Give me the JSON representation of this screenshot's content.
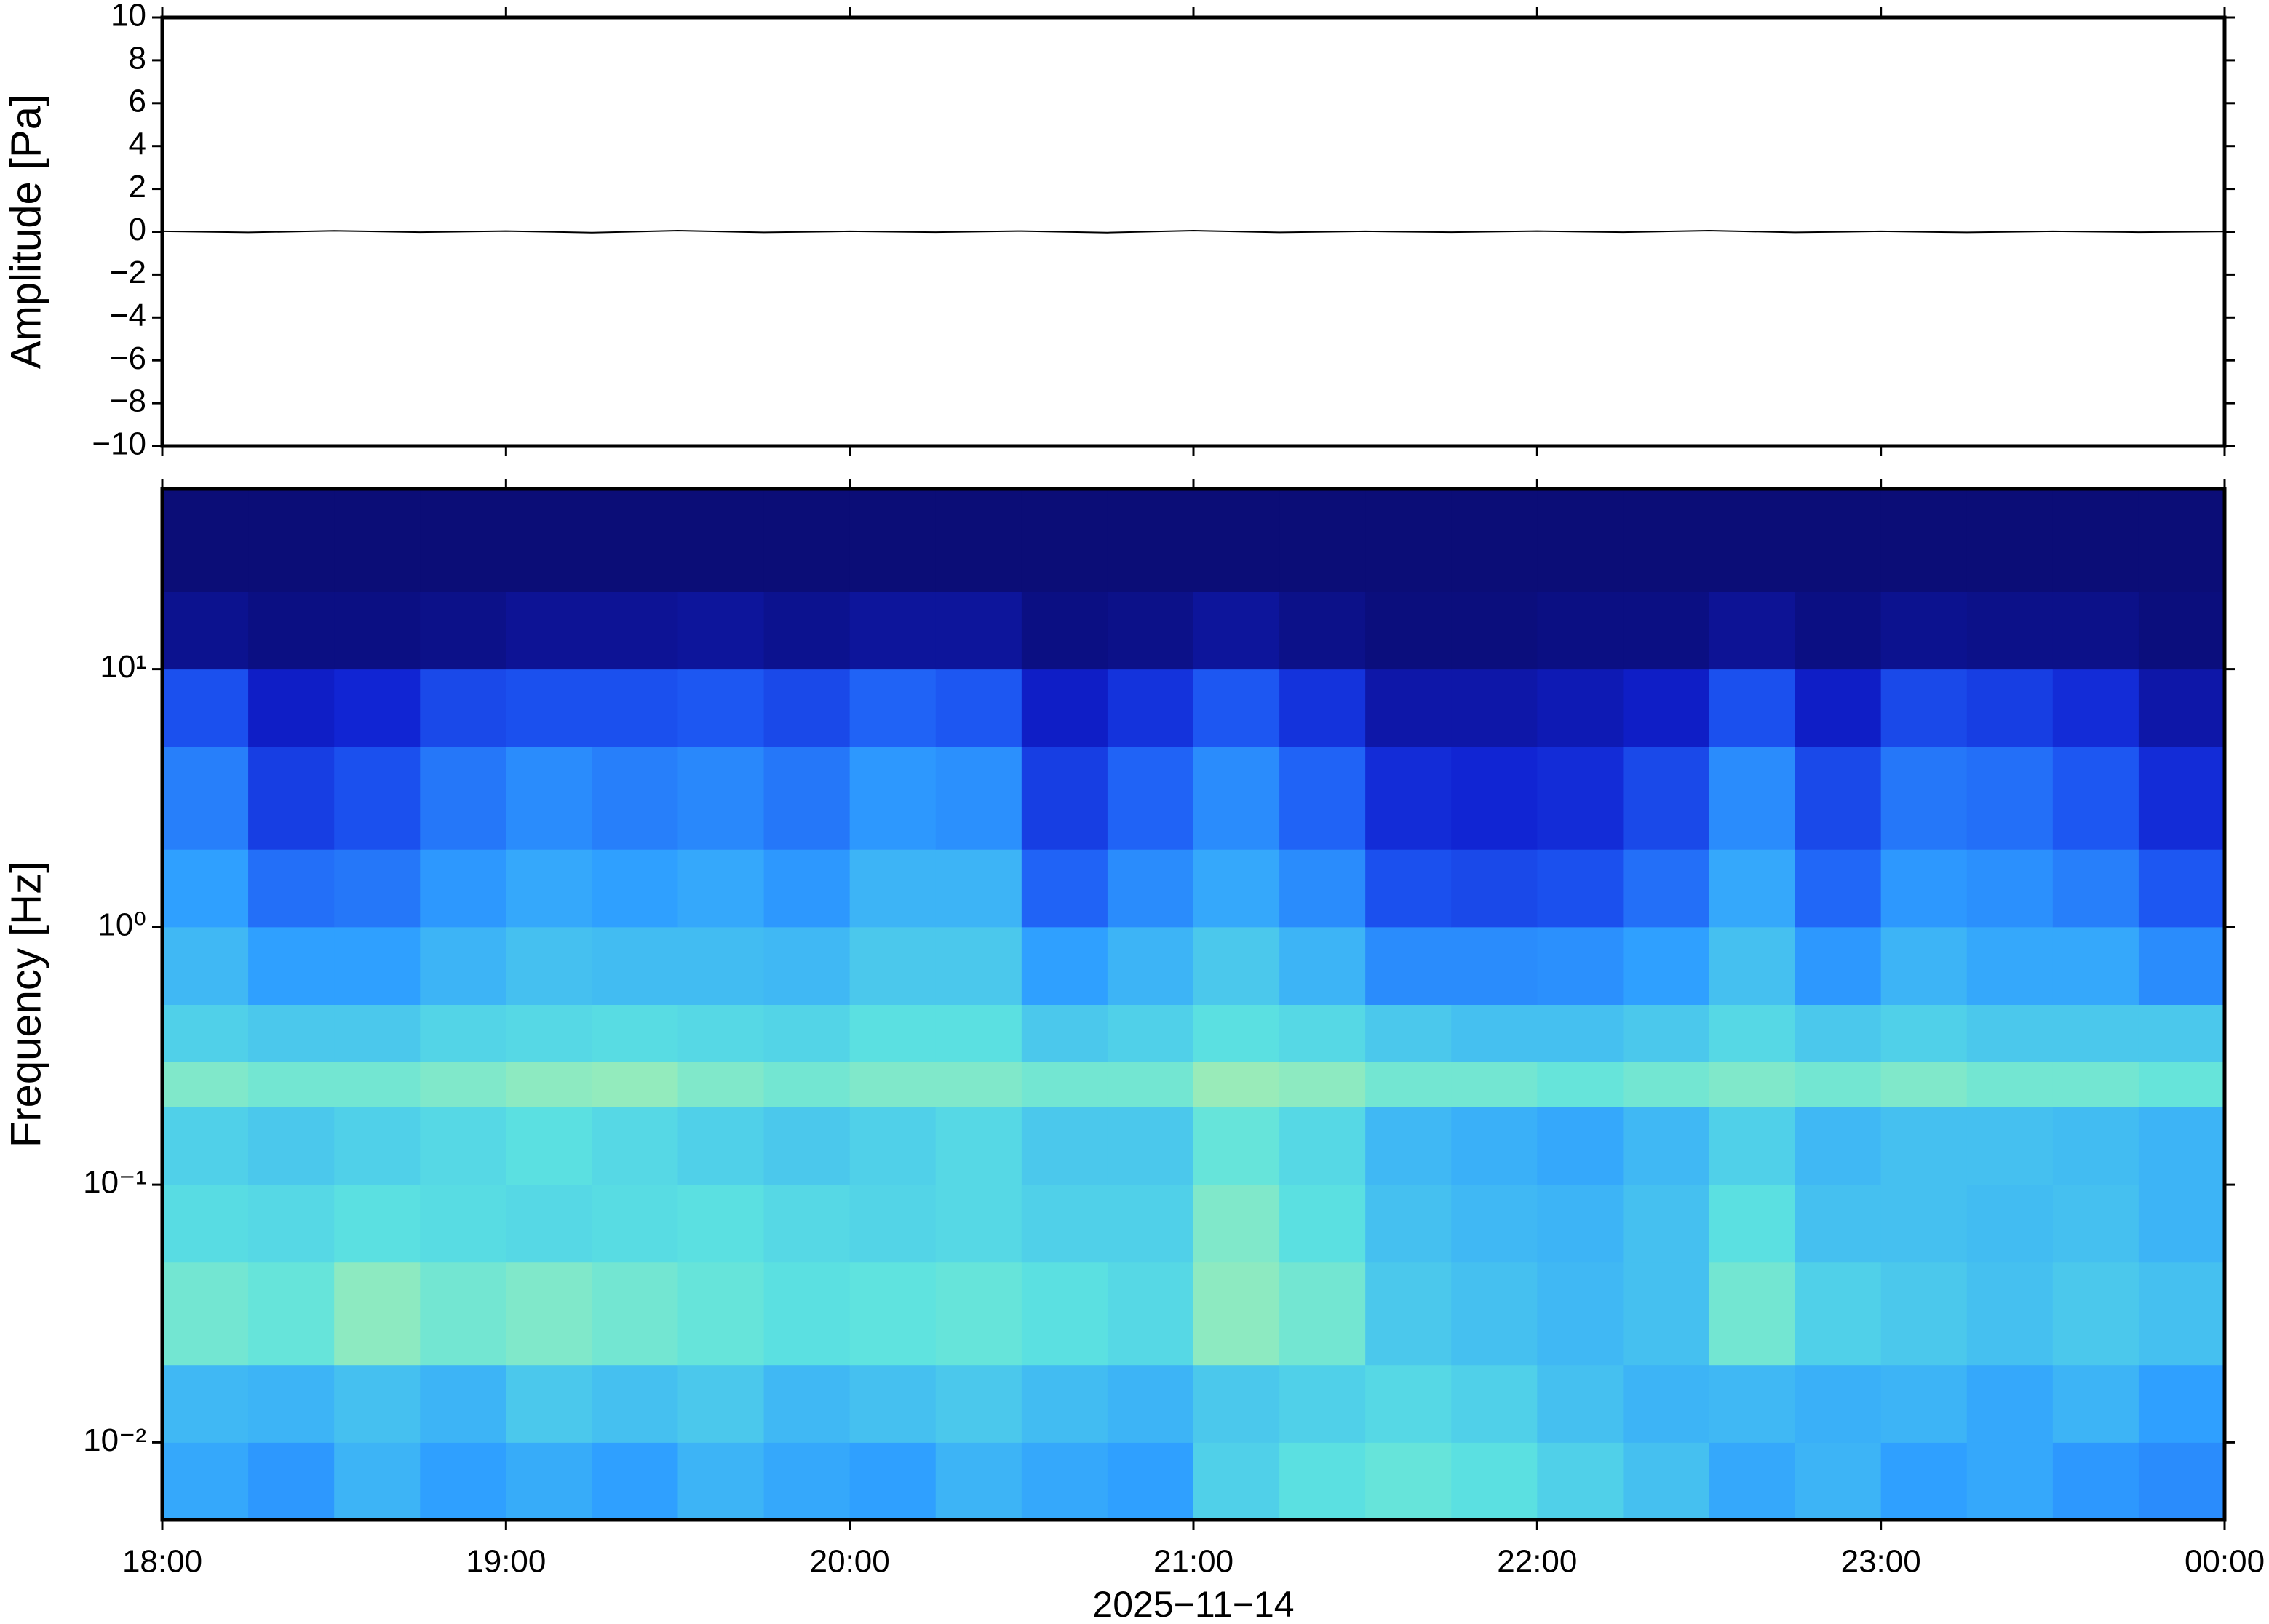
{
  "chart_data": [
    {
      "type": "line",
      "ylabel": "Amplitude [Pa]",
      "x": [
        18,
        18.25,
        18.5,
        18.75,
        19,
        19.25,
        19.5,
        19.75,
        20,
        20.25,
        20.5,
        20.75,
        21,
        21.25,
        21.5,
        21.75,
        22,
        22.25,
        22.5,
        22.75,
        23,
        23.25,
        23.5,
        23.75,
        24
      ],
      "series": [
        {
          "color": "#000000",
          "values": [
            0.02,
            -0.03,
            0.04,
            -0.02,
            0.03,
            -0.04,
            0.05,
            -0.03,
            0.02,
            -0.02,
            0.03,
            -0.04,
            0.05,
            -0.03,
            0.02,
            -0.02,
            0.03,
            -0.02,
            0.05,
            -0.03,
            0.02,
            -0.03,
            0.02,
            -0.02,
            0.01
          ]
        }
      ],
      "xlim": [
        18,
        24
      ],
      "xticks": [
        18,
        19,
        20,
        21,
        22,
        23,
        24
      ],
      "ylim": [
        -10,
        10
      ],
      "yticks": [
        {
          "value": -10,
          "label": "−10"
        },
        {
          "value": -8,
          "label": "−8"
        },
        {
          "value": -6,
          "label": "−6"
        },
        {
          "value": -4,
          "label": "−4"
        },
        {
          "value": -2,
          "label": "−2"
        },
        0,
        2,
        4,
        6,
        8,
        10
      ]
    },
    {
      "type": "heatmap",
      "ylabel": "Frequency [Hz]",
      "xlabel": "2025−11−14",
      "log_y": true,
      "xbins": [
        18,
        18.25,
        18.5,
        18.75,
        19,
        19.25,
        19.5,
        19.75,
        20,
        20.25,
        20.5,
        20.75,
        21,
        21.25,
        21.5,
        21.75,
        22,
        22.25,
        22.5,
        22.75,
        23,
        23.25,
        23.5,
        23.75,
        24
      ],
      "ybins": [
        0.005,
        0.01,
        0.02,
        0.05,
        0.1,
        0.2,
        0.3,
        0.5,
        1,
        2,
        5,
        10,
        20,
        50
      ],
      "colormap": [
        "#0a0a6b",
        "#1020d0",
        "#1e5cf5",
        "#2fa0ff",
        "#5de3e0",
        "#c9f29a",
        "#f5f7a0"
      ],
      "values": [
        [
          0.52,
          0.48,
          0.55,
          0.5,
          0.53,
          0.5,
          0.55,
          0.52,
          0.5,
          0.55,
          0.52,
          0.5,
          0.62,
          0.66,
          0.68,
          0.66,
          0.62,
          0.58,
          0.52,
          0.55,
          0.5,
          0.52,
          0.48,
          0.45
        ],
        [
          0.56,
          0.55,
          0.58,
          0.55,
          0.6,
          0.58,
          0.6,
          0.56,
          0.58,
          0.6,
          0.57,
          0.55,
          0.6,
          0.62,
          0.64,
          0.62,
          0.58,
          0.55,
          0.56,
          0.54,
          0.55,
          0.52,
          0.55,
          0.5
        ],
        [
          0.7,
          0.68,
          0.74,
          0.7,
          0.72,
          0.7,
          0.68,
          0.66,
          0.67,
          0.68,
          0.66,
          0.64,
          0.74,
          0.7,
          0.6,
          0.58,
          0.56,
          0.58,
          0.7,
          0.62,
          0.6,
          0.58,
          0.6,
          0.58
        ],
        [
          0.65,
          0.64,
          0.66,
          0.65,
          0.64,
          0.65,
          0.66,
          0.64,
          0.63,
          0.64,
          0.62,
          0.62,
          0.72,
          0.66,
          0.58,
          0.56,
          0.55,
          0.58,
          0.66,
          0.58,
          0.58,
          0.57,
          0.58,
          0.55
        ],
        [
          0.62,
          0.6,
          0.62,
          0.64,
          0.66,
          0.64,
          0.62,
          0.6,
          0.62,
          0.64,
          0.6,
          0.6,
          0.68,
          0.64,
          0.56,
          0.54,
          0.52,
          0.56,
          0.62,
          0.56,
          0.58,
          0.58,
          0.57,
          0.55
        ],
        [
          0.72,
          0.7,
          0.7,
          0.72,
          0.74,
          0.75,
          0.72,
          0.7,
          0.72,
          0.72,
          0.7,
          0.7,
          0.76,
          0.74,
          0.7,
          0.7,
          0.68,
          0.7,
          0.72,
          0.7,
          0.72,
          0.7,
          0.7,
          0.68
        ],
        [
          0.62,
          0.6,
          0.6,
          0.63,
          0.64,
          0.65,
          0.64,
          0.63,
          0.66,
          0.66,
          0.6,
          0.62,
          0.66,
          0.64,
          0.6,
          0.58,
          0.58,
          0.6,
          0.64,
          0.6,
          0.62,
          0.6,
          0.6,
          0.6
        ],
        [
          0.56,
          0.5,
          0.5,
          0.55,
          0.58,
          0.57,
          0.57,
          0.56,
          0.6,
          0.6,
          0.5,
          0.55,
          0.6,
          0.55,
          0.45,
          0.45,
          0.46,
          0.5,
          0.58,
          0.48,
          0.55,
          0.52,
          0.52,
          0.45
        ],
        [
          0.5,
          0.38,
          0.4,
          0.48,
          0.52,
          0.5,
          0.52,
          0.48,
          0.55,
          0.55,
          0.35,
          0.45,
          0.52,
          0.45,
          0.3,
          0.28,
          0.3,
          0.38,
          0.52,
          0.36,
          0.48,
          0.46,
          0.42,
          0.32
        ],
        [
          0.42,
          0.25,
          0.3,
          0.4,
          0.45,
          0.42,
          0.44,
          0.4,
          0.48,
          0.46,
          0.25,
          0.35,
          0.45,
          0.35,
          0.2,
          0.18,
          0.2,
          0.28,
          0.45,
          0.28,
          0.4,
          0.38,
          0.32,
          0.2
        ],
        [
          0.3,
          0.15,
          0.18,
          0.28,
          0.3,
          0.3,
          0.32,
          0.28,
          0.35,
          0.32,
          0.15,
          0.22,
          0.32,
          0.22,
          0.1,
          0.1,
          0.12,
          0.15,
          0.3,
          0.15,
          0.28,
          0.25,
          0.2,
          0.1
        ],
        [
          0.06,
          0.04,
          0.04,
          0.05,
          0.07,
          0.07,
          0.08,
          0.06,
          0.08,
          0.08,
          0.04,
          0.05,
          0.08,
          0.05,
          0.03,
          0.03,
          0.04,
          0.04,
          0.07,
          0.04,
          0.06,
          0.05,
          0.05,
          0.03
        ],
        [
          0.02,
          0.02,
          0.02,
          0.02,
          0.02,
          0.02,
          0.02,
          0.02,
          0.02,
          0.02,
          0.02,
          0.02,
          0.02,
          0.02,
          0.02,
          0.02,
          0.02,
          0.02,
          0.02,
          0.02,
          0.02,
          0.02,
          0.02,
          0.02
        ]
      ],
      "xlim": [
        18,
        24
      ],
      "xticks": [
        {
          "value": 18,
          "label": "18:00"
        },
        {
          "value": 19,
          "label": "19:00"
        },
        {
          "value": 20,
          "label": "20:00"
        },
        {
          "value": 21,
          "label": "21:00"
        },
        {
          "value": 22,
          "label": "22:00"
        },
        {
          "value": 23,
          "label": "23:00"
        },
        {
          "value": 24,
          "label": "00:00"
        }
      ],
      "ylim": [
        0.005,
        50
      ],
      "yticks": [
        {
          "value": 0.01,
          "label": "10⁻²"
        },
        {
          "value": 0.1,
          "label": "10⁻¹"
        },
        {
          "value": 1,
          "label": "10⁰"
        },
        {
          "value": 10,
          "label": "10¹"
        }
      ]
    }
  ]
}
